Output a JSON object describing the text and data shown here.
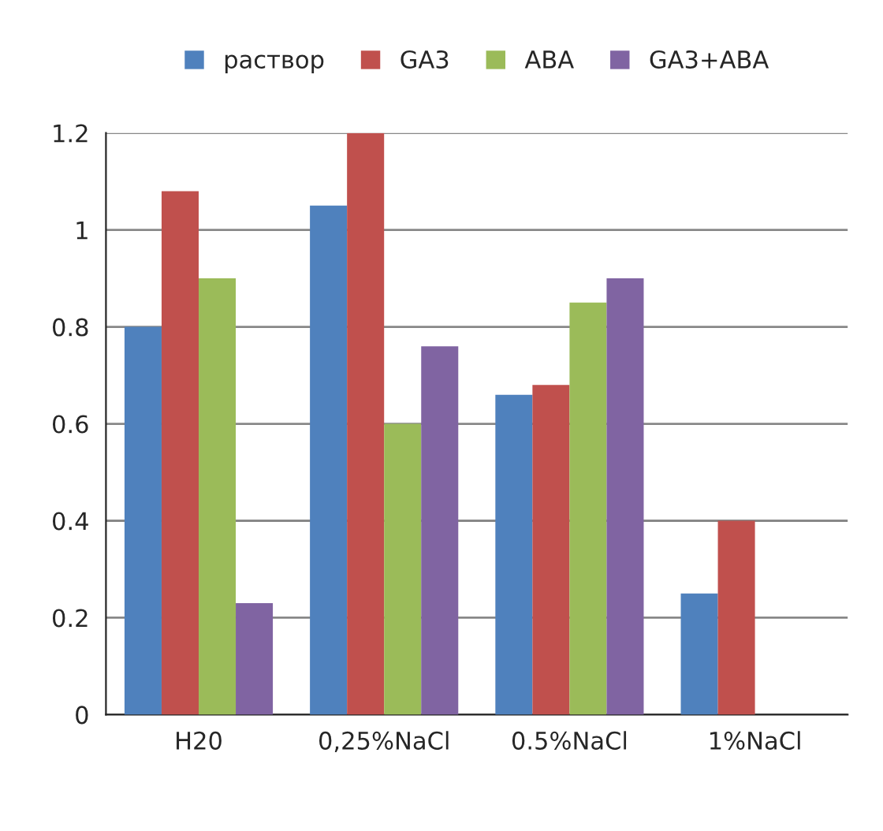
{
  "chart_data": {
    "type": "bar",
    "categories": [
      "H20",
      "0,25%NaCl",
      "0.5%NaCl",
      "1%NaCl"
    ],
    "series": [
      {
        "name": "раствор",
        "color": "#4f81bd",
        "values": [
          0.8,
          1.05,
          0.66,
          0.25
        ]
      },
      {
        "name": "GA3",
        "color": "#c0504d",
        "values": [
          1.08,
          1.2,
          0.68,
          0.4
        ]
      },
      {
        "name": "ABA",
        "color": "#9bbb59",
        "values": [
          0.9,
          0.6,
          0.85,
          0
        ]
      },
      {
        "name": "GA3+ABA",
        "color": "#8064a2",
        "values": [
          0.23,
          0.76,
          0.9,
          0
        ]
      }
    ],
    "ylim": [
      0,
      1.2
    ],
    "yticks": [
      0,
      0.2,
      0.4,
      0.6,
      0.8,
      1,
      1.2
    ],
    "grid": "y",
    "legend": "top"
  }
}
